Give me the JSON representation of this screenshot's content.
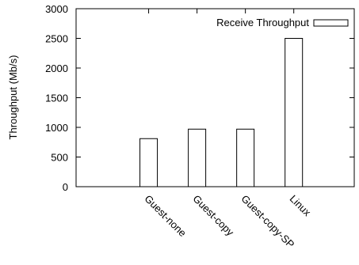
{
  "chart_data": {
    "type": "bar",
    "categories": [
      "Guest-none",
      "Guest-copy",
      "Guest-copy-SP",
      "Linux"
    ],
    "series": [
      {
        "name": "Receive Throughput",
        "values": [
          810,
          970,
          970,
          2500
        ]
      }
    ],
    "ylabel": "Throughput (Mb/s)",
    "ylim": [
      0,
      3000
    ],
    "yticks": [
      "0",
      "500",
      "1000",
      "1500",
      "2000",
      "2500",
      "3000"
    ],
    "grid": false,
    "legend_position": "top-right",
    "bar_fill": "#ffffff",
    "stroke_color": "#000000"
  }
}
